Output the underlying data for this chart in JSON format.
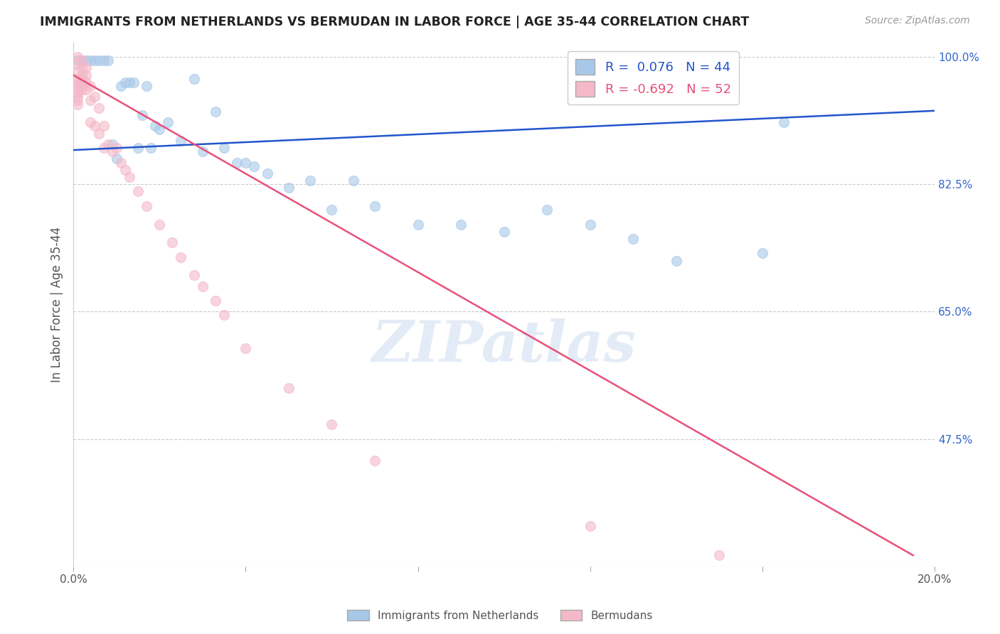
{
  "title": "IMMIGRANTS FROM NETHERLANDS VS BERMUDAN IN LABOR FORCE | AGE 35-44 CORRELATION CHART",
  "source": "Source: ZipAtlas.com",
  "ylabel": "In Labor Force | Age 35-44",
  "xmin": 0.0,
  "xmax": 0.2,
  "ymin": 0.3,
  "ymax": 1.02,
  "yticks": [
    0.475,
    0.65,
    0.825,
    1.0
  ],
  "ytick_labels": [
    "47.5%",
    "65.0%",
    "82.5%",
    "100.0%"
  ],
  "xticks": [
    0.0,
    0.04,
    0.08,
    0.12,
    0.16,
    0.2
  ],
  "xtick_labels": [
    "0.0%",
    "",
    "",
    "",
    "",
    "20.0%"
  ],
  "legend_blue_R": "0.076",
  "legend_blue_N": "44",
  "legend_pink_R": "-0.692",
  "legend_pink_N": "52",
  "blue_color": "#a8c8e8",
  "pink_color": "#f4b8c8",
  "blue_line_color": "#2255cc",
  "pink_line_color": "#e8507a",
  "watermark": "ZIPatlas",
  "blue_scatter_x": [
    0.001,
    0.002,
    0.003,
    0.004,
    0.005,
    0.006,
    0.007,
    0.008,
    0.009,
    0.01,
    0.011,
    0.012,
    0.013,
    0.014,
    0.015,
    0.016,
    0.017,
    0.018,
    0.019,
    0.02,
    0.022,
    0.025,
    0.028,
    0.03,
    0.033,
    0.035,
    0.038,
    0.04,
    0.042,
    0.045,
    0.05,
    0.055,
    0.06,
    0.065,
    0.07,
    0.08,
    0.09,
    0.1,
    0.11,
    0.12,
    0.13,
    0.14,
    0.16,
    0.165
  ],
  "blue_scatter_y": [
    0.995,
    0.995,
    0.995,
    0.995,
    0.995,
    0.995,
    0.995,
    0.995,
    0.88,
    0.86,
    0.96,
    0.965,
    0.965,
    0.965,
    0.875,
    0.92,
    0.96,
    0.875,
    0.905,
    0.9,
    0.91,
    0.885,
    0.97,
    0.87,
    0.925,
    0.875,
    0.855,
    0.855,
    0.85,
    0.84,
    0.82,
    0.83,
    0.79,
    0.83,
    0.795,
    0.77,
    0.77,
    0.76,
    0.79,
    0.77,
    0.75,
    0.72,
    0.73,
    0.91
  ],
  "pink_scatter_x": [
    0.001,
    0.001,
    0.001,
    0.001,
    0.001,
    0.001,
    0.001,
    0.001,
    0.001,
    0.001,
    0.001,
    0.002,
    0.002,
    0.002,
    0.002,
    0.002,
    0.002,
    0.002,
    0.003,
    0.003,
    0.003,
    0.003,
    0.004,
    0.004,
    0.004,
    0.005,
    0.005,
    0.006,
    0.006,
    0.007,
    0.007,
    0.008,
    0.009,
    0.01,
    0.011,
    0.012,
    0.013,
    0.015,
    0.017,
    0.02,
    0.023,
    0.025,
    0.028,
    0.03,
    0.033,
    0.035,
    0.04,
    0.05,
    0.06,
    0.07,
    0.12,
    0.15
  ],
  "pink_scatter_y": [
    1.0,
    0.99,
    0.98,
    0.97,
    0.965,
    0.96,
    0.955,
    0.95,
    0.945,
    0.94,
    0.935,
    0.995,
    0.985,
    0.975,
    0.97,
    0.965,
    0.96,
    0.955,
    0.985,
    0.975,
    0.965,
    0.955,
    0.96,
    0.94,
    0.91,
    0.945,
    0.905,
    0.93,
    0.895,
    0.905,
    0.875,
    0.88,
    0.87,
    0.875,
    0.855,
    0.845,
    0.835,
    0.815,
    0.795,
    0.77,
    0.745,
    0.725,
    0.7,
    0.685,
    0.665,
    0.645,
    0.6,
    0.545,
    0.495,
    0.445,
    0.355,
    0.315
  ],
  "blue_trend_x": [
    0.0,
    0.2
  ],
  "blue_trend_y": [
    0.872,
    0.926
  ],
  "pink_trend_x": [
    0.0,
    0.195
  ],
  "pink_trend_y": [
    0.975,
    0.315
  ],
  "background_color": "#ffffff",
  "grid_color": "#cccccc",
  "title_color": "#222222",
  "ylabel_color": "#555555",
  "tick_label_color_right": "#3366cc",
  "tick_label_color_bottom": "#555555"
}
